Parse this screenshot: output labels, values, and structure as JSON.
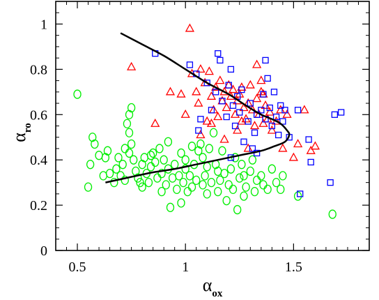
{
  "chart_data": {
    "type": "scatter",
    "title": "",
    "xlabel": {
      "symbol": "α",
      "subscript": "ox"
    },
    "ylabel": {
      "symbol": "α",
      "subscript": "ro"
    },
    "xlim": [
      0.4,
      1.85
    ],
    "ylim": [
      0,
      1.1
    ],
    "xticks": [
      0.5,
      1,
      1.5
    ],
    "xtick_labels": [
      "0.5",
      "1",
      "1.5"
    ],
    "yticks": [
      0,
      0.2,
      0.4,
      0.6,
      0.8,
      1
    ],
    "ytick_labels": [
      "0",
      "0.2",
      "0.4",
      "0.6",
      "0.8",
      "1"
    ],
    "grid": false,
    "legend": "none",
    "series": [
      {
        "marker": "circle",
        "color": "#00ee00",
        "points": [
          [
            0.5,
            0.69
          ],
          [
            0.55,
            0.28
          ],
          [
            0.56,
            0.38
          ],
          [
            0.57,
            0.5
          ],
          [
            0.58,
            0.47
          ],
          [
            0.6,
            0.42
          ],
          [
            0.62,
            0.33
          ],
          [
            0.63,
            0.41
          ],
          [
            0.64,
            0.44
          ],
          [
            0.65,
            0.34
          ],
          [
            0.67,
            0.3
          ],
          [
            0.68,
            0.36
          ],
          [
            0.7,
            0.33
          ],
          [
            0.71,
            0.38
          ],
          [
            0.72,
            0.31
          ],
          [
            0.73,
            0.56
          ],
          [
            0.74,
            0.6
          ],
          [
            0.74,
            0.52
          ],
          [
            0.75,
            0.63
          ],
          [
            0.75,
            0.47
          ],
          [
            0.74,
            0.43
          ],
          [
            0.76,
            0.4
          ],
          [
            0.77,
            0.35
          ],
          [
            0.78,
            0.32
          ],
          [
            0.79,
            0.3
          ],
          [
            0.8,
            0.38
          ],
          [
            0.8,
            0.28
          ],
          [
            0.81,
            0.41
          ],
          [
            0.82,
            0.34
          ],
          [
            0.83,
            0.3
          ],
          [
            0.84,
            0.37
          ],
          [
            0.85,
            0.43
          ],
          [
            0.86,
            0.39
          ],
          [
            0.87,
            0.32
          ],
          [
            0.88,
            0.45
          ],
          [
            0.89,
            0.34
          ],
          [
            0.9,
            0.4
          ],
          [
            0.91,
            0.29
          ],
          [
            0.92,
            0.36
          ],
          [
            0.92,
            0.48
          ],
          [
            0.93,
            0.19
          ],
          [
            0.94,
            0.32
          ],
          [
            0.95,
            0.38
          ],
          [
            0.96,
            0.27
          ],
          [
            0.97,
            0.33
          ],
          [
            0.98,
            0.21
          ],
          [
            0.99,
            0.3
          ],
          [
            1.0,
            0.36
          ],
          [
            1.0,
            0.4
          ],
          [
            1.01,
            0.26
          ],
          [
            1.02,
            0.33
          ],
          [
            1.03,
            0.28
          ],
          [
            1.04,
            0.38
          ],
          [
            1.05,
            0.31
          ],
          [
            1.06,
            0.44
          ],
          [
            1.07,
            0.47
          ],
          [
            1.08,
            0.29
          ],
          [
            1.09,
            0.33
          ],
          [
            1.1,
            0.37
          ],
          [
            1.1,
            0.25
          ],
          [
            1.11,
            0.45
          ],
          [
            1.12,
            0.3
          ],
          [
            1.13,
            0.52
          ],
          [
            1.14,
            0.38
          ],
          [
            1.15,
            0.26
          ],
          [
            1.16,
            0.31
          ],
          [
            1.17,
            0.44
          ],
          [
            1.18,
            0.34
          ],
          [
            1.19,
            0.22
          ],
          [
            1.2,
            0.29
          ],
          [
            1.21,
            0.36
          ],
          [
            1.22,
            0.27
          ],
          [
            1.23,
            0.41
          ],
          [
            1.24,
            0.18
          ],
          [
            1.25,
            0.32
          ],
          [
            1.26,
            0.38
          ],
          [
            1.27,
            0.24
          ],
          [
            1.28,
            0.28
          ],
          [
            1.3,
            0.35
          ],
          [
            1.31,
            0.4
          ],
          [
            1.32,
            0.26
          ],
          [
            1.33,
            0.31
          ],
          [
            1.35,
            0.33
          ],
          [
            1.36,
            0.29
          ],
          [
            1.38,
            0.27
          ],
          [
            1.4,
            0.36
          ],
          [
            1.42,
            0.3
          ],
          [
            1.44,
            0.27
          ],
          [
            1.45,
            0.33
          ],
          [
            1.52,
            0.24
          ],
          [
            1.68,
            0.16
          ],
          [
            0.98,
            0.43
          ],
          [
            1.03,
            0.46
          ],
          [
            1.08,
            0.41
          ],
          [
            0.84,
            0.42
          ],
          [
            0.89,
            0.26
          ],
          [
            0.69,
            0.41
          ],
          [
            0.72,
            0.45
          ],
          [
            1.15,
            0.35
          ],
          [
            1.27,
            0.33
          ]
        ]
      },
      {
        "marker": "triangle",
        "color": "#ff0000",
        "points": [
          [
            0.75,
            0.81
          ],
          [
            0.86,
            0.56
          ],
          [
            0.98,
            0.69
          ],
          [
            1.02,
            0.98
          ],
          [
            1.03,
            0.78
          ],
          [
            1.05,
            0.7
          ],
          [
            1.06,
            0.65
          ],
          [
            1.07,
            0.8
          ],
          [
            1.09,
            0.74
          ],
          [
            1.1,
            0.57
          ],
          [
            1.11,
            0.79
          ],
          [
            1.12,
            0.68
          ],
          [
            1.13,
            0.62
          ],
          [
            1.14,
            0.72
          ],
          [
            1.15,
            0.59
          ],
          [
            1.16,
            0.75
          ],
          [
            1.17,
            0.66
          ],
          [
            1.18,
            0.7
          ],
          [
            1.19,
            0.63
          ],
          [
            1.2,
            0.73
          ],
          [
            1.21,
            0.68
          ],
          [
            1.22,
            0.71
          ],
          [
            1.23,
            0.6
          ],
          [
            1.24,
            0.66
          ],
          [
            1.25,
            0.69
          ],
          [
            1.26,
            0.72
          ],
          [
            1.27,
            0.63
          ],
          [
            1.28,
            0.58
          ],
          [
            1.29,
            0.65
          ],
          [
            1.3,
            0.73
          ],
          [
            1.31,
            0.62
          ],
          [
            1.32,
            0.55
          ],
          [
            1.33,
            0.67
          ],
          [
            1.34,
            0.6
          ],
          [
            1.35,
            0.7
          ],
          [
            1.36,
            0.56
          ],
          [
            1.37,
            0.64
          ],
          [
            1.38,
            0.58
          ],
          [
            1.39,
            0.61
          ],
          [
            1.4,
            0.53
          ],
          [
            1.42,
            0.57
          ],
          [
            1.44,
            0.62
          ],
          [
            1.45,
            0.45
          ],
          [
            1.47,
            0.6
          ],
          [
            1.5,
            0.41
          ],
          [
            1.52,
            0.47
          ],
          [
            1.55,
            0.62
          ],
          [
            1.58,
            0.44
          ],
          [
            1.6,
            0.46
          ],
          [
            1.24,
            0.53
          ],
          [
            1.26,
            0.57
          ],
          [
            1.33,
            0.82
          ],
          [
            1.35,
            0.75
          ],
          [
            1.0,
            0.6
          ],
          [
            0.93,
            0.7
          ],
          [
            1.07,
            0.51
          ],
          [
            1.18,
            0.49
          ],
          [
            1.29,
            0.45
          ],
          [
            1.12,
            0.56
          ],
          [
            1.36,
            0.69
          ]
        ]
      },
      {
        "marker": "square",
        "color": "#0000ff",
        "points": [
          [
            0.86,
            0.87
          ],
          [
            1.02,
            0.82
          ],
          [
            1.05,
            0.78
          ],
          [
            1.06,
            0.53
          ],
          [
            1.07,
            0.58
          ],
          [
            1.1,
            0.74
          ],
          [
            1.12,
            0.62
          ],
          [
            1.14,
            0.7
          ],
          [
            1.15,
            0.87
          ],
          [
            1.16,
            0.84
          ],
          [
            1.17,
            0.66
          ],
          [
            1.19,
            0.59
          ],
          [
            1.2,
            0.73
          ],
          [
            1.21,
            0.8
          ],
          [
            1.22,
            0.64
          ],
          [
            1.23,
            0.55
          ],
          [
            1.24,
            0.68
          ],
          [
            1.25,
            0.61
          ],
          [
            1.26,
            0.71
          ],
          [
            1.27,
            0.48
          ],
          [
            1.29,
            0.57
          ],
          [
            1.3,
            0.65
          ],
          [
            1.31,
            0.45
          ],
          [
            1.32,
            0.52
          ],
          [
            1.33,
            0.6
          ],
          [
            1.35,
            0.62
          ],
          [
            1.36,
            0.69
          ],
          [
            1.37,
            0.84
          ],
          [
            1.38,
            0.76
          ],
          [
            1.39,
            0.63
          ],
          [
            1.4,
            0.55
          ],
          [
            1.41,
            0.7
          ],
          [
            1.42,
            0.59
          ],
          [
            1.43,
            0.51
          ],
          [
            1.44,
            0.64
          ],
          [
            1.45,
            0.57
          ],
          [
            1.46,
            0.62
          ],
          [
            1.48,
            0.5
          ],
          [
            1.52,
            0.62
          ],
          [
            1.53,
            0.25
          ],
          [
            1.57,
            0.49
          ],
          [
            1.58,
            0.39
          ],
          [
            1.67,
            0.3
          ],
          [
            1.69,
            0.6
          ],
          [
            1.72,
            0.61
          ],
          [
            1.33,
            0.43
          ],
          [
            1.21,
            0.41
          ],
          [
            1.37,
            0.58
          ]
        ]
      }
    ],
    "curve": {
      "color": "#000000",
      "points": [
        [
          0.7,
          0.96
        ],
        [
          0.8,
          0.91
        ],
        [
          0.9,
          0.86
        ],
        [
          1.0,
          0.8
        ],
        [
          1.1,
          0.74
        ],
        [
          1.2,
          0.69
        ],
        [
          1.28,
          0.64
        ],
        [
          1.35,
          0.6
        ],
        [
          1.4,
          0.58
        ],
        [
          1.44,
          0.56
        ],
        [
          1.47,
          0.53
        ],
        [
          1.48,
          0.51
        ],
        [
          1.46,
          0.48
        ],
        [
          1.41,
          0.46
        ],
        [
          1.35,
          0.44
        ],
        [
          1.25,
          0.42
        ],
        [
          1.15,
          0.4
        ],
        [
          1.05,
          0.38
        ],
        [
          0.95,
          0.36
        ],
        [
          0.85,
          0.345
        ],
        [
          0.75,
          0.325
        ],
        [
          0.63,
          0.3
        ]
      ]
    }
  }
}
